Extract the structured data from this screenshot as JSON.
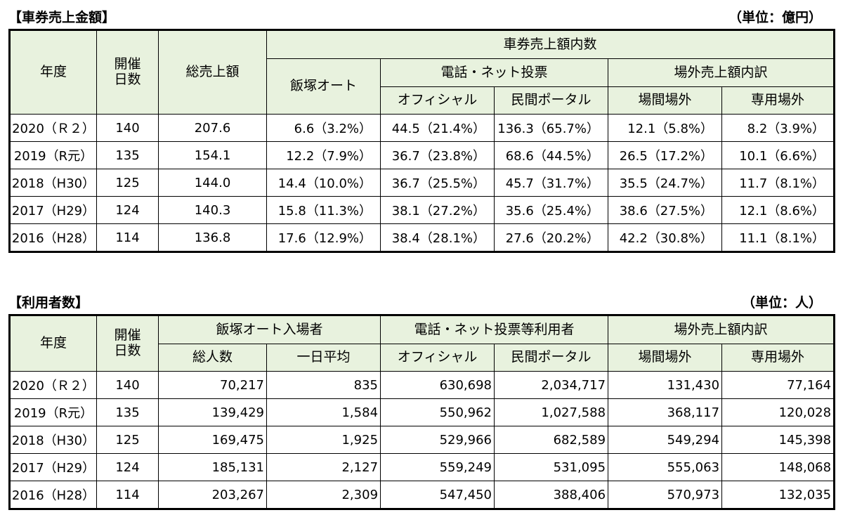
{
  "sales": {
    "title": "【車券売上金額】",
    "unit": "（単位：億円）",
    "headers": {
      "year": "年度",
      "days": "開催\n日数",
      "total": "総売上額",
      "breakdown": "車券売上額内数",
      "iizuka": "飯塚オート",
      "phone_net": "電話・ネット投票",
      "official": "オフィシャル",
      "portal": "民間ポータル",
      "offsite": "場外売上額内訳",
      "track_offsite": "場間場外",
      "dedicated_offsite": "専用場外"
    },
    "rows": [
      {
        "year": "2020（Ｒ２）",
        "days": "140",
        "total": "207.6",
        "iizuka": "6.6（3.2%）",
        "official": "44.5（21.4%）",
        "portal": "136.3（65.7%）",
        "track": "12.1（5.8%）",
        "dedicated": "8.2（3.9%）"
      },
      {
        "year": "2019（R元）",
        "days": "135",
        "total": "154.1",
        "iizuka": "12.2（7.9%）",
        "official": "36.7（23.8%）",
        "portal": "68.6（44.5%）",
        "track": "26.5（17.2%）",
        "dedicated": "10.1（6.6%）"
      },
      {
        "year": "2018（H30）",
        "days": "125",
        "total": "144.0",
        "iizuka": "14.4（10.0%）",
        "official": "36.7（25.5%）",
        "portal": "45.7（31.7%）",
        "track": "35.5（24.7%）",
        "dedicated": "11.7（8.1%）"
      },
      {
        "year": "2017（H29）",
        "days": "124",
        "total": "140.3",
        "iizuka": "15.8（11.3%）",
        "official": "38.1（27.2%）",
        "portal": "35.6（25.4%）",
        "track": "38.6（27.5%）",
        "dedicated": "12.1（8.6%）"
      },
      {
        "year": "2016（H28）",
        "days": "114",
        "total": "136.8",
        "iizuka": "17.6（12.9%）",
        "official": "38.4（28.1%）",
        "portal": "27.6（20.2%）",
        "track": "42.2（30.8%）",
        "dedicated": "11.1（8.1%）"
      }
    ]
  },
  "users": {
    "title": "【利用者数】",
    "unit": "（単位：人）",
    "headers": {
      "year": "年度",
      "days": "開催\n日数",
      "iizuka_visitors": "飯塚オート入場者",
      "total_people": "総人数",
      "daily_avg": "一日平均",
      "phone_net_users": "電話・ネット投票等利用者",
      "official": "オフィシャル",
      "portal": "民間ポータル",
      "offsite": "場外売上額内訳",
      "track_offsite": "場間場外",
      "dedicated_offsite": "専用場外"
    },
    "rows": [
      {
        "year": "2020（Ｒ２）",
        "days": "140",
        "total": "70,217",
        "avg": "835",
        "official": "630,698",
        "portal": "2,034,717",
        "track": "131,430",
        "dedicated": "77,164"
      },
      {
        "year": "2019（R元）",
        "days": "135",
        "total": "139,429",
        "avg": "1,584",
        "official": "550,962",
        "portal": "1,027,588",
        "track": "368,117",
        "dedicated": "120,028"
      },
      {
        "year": "2018（H30）",
        "days": "125",
        "total": "169,475",
        "avg": "1,925",
        "official": "529,966",
        "portal": "682,589",
        "track": "549,294",
        "dedicated": "145,398"
      },
      {
        "year": "2017（H29）",
        "days": "124",
        "total": "185,131",
        "avg": "2,127",
        "official": "559,249",
        "portal": "531,095",
        "track": "555,063",
        "dedicated": "148,068"
      },
      {
        "year": "2016（H28）",
        "days": "114",
        "total": "203,267",
        "avg": "2,309",
        "official": "547,450",
        "portal": "388,406",
        "track": "570,973",
        "dedicated": "132,035"
      }
    ]
  }
}
